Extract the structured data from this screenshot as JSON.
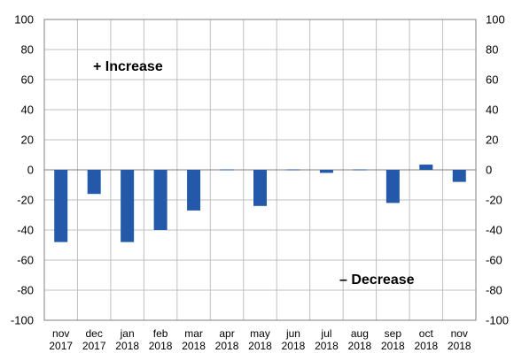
{
  "chart_data": {
    "type": "bar",
    "categories": [
      [
        "nov",
        "2017"
      ],
      [
        "dec",
        "2017"
      ],
      [
        "jan",
        "2018"
      ],
      [
        "feb",
        "2018"
      ],
      [
        "mar",
        "2018"
      ],
      [
        "apr",
        "2018"
      ],
      [
        "may",
        "2018"
      ],
      [
        "jun",
        "2018"
      ],
      [
        "jul",
        "2018"
      ],
      [
        "aug",
        "2018"
      ],
      [
        "sep",
        "2018"
      ],
      [
        "oct",
        "2018"
      ],
      [
        "nov",
        "2018"
      ]
    ],
    "values": [
      -48,
      -16,
      -48,
      -40,
      -27,
      0.3,
      -24,
      0.3,
      -2,
      0.3,
      -22,
      3.5,
      -8
    ],
    "ylim": [
      -100,
      100
    ],
    "yticks": [
      "100",
      "80",
      "60",
      "40",
      "20",
      "0",
      "-20",
      "-40",
      "-60",
      "-80",
      "-100"
    ],
    "yticks_right": [
      "100",
      "80",
      "60",
      "40",
      "20",
      "0",
      "-20",
      "-40",
      "-60",
      "-80",
      "-100"
    ],
    "grid": true,
    "bar_color": "#2359A8",
    "annotations": {
      "increase": "+ Increase",
      "decrease": "– Decrease"
    },
    "title": "",
    "xlabel": "",
    "ylabel": ""
  }
}
